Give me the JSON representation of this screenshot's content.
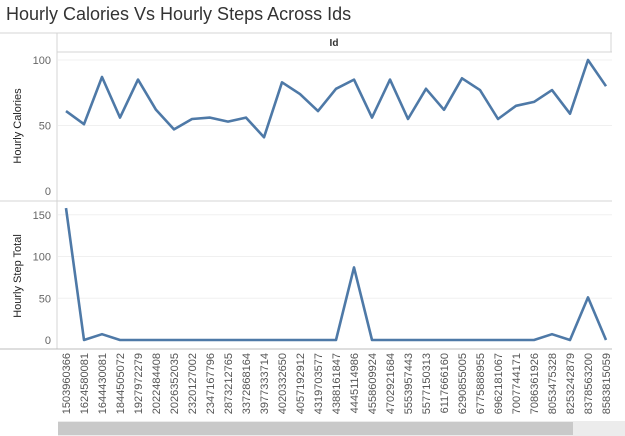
{
  "title": "Hourly Calories Vs Hourly Steps Across Ids",
  "chart_data": {
    "type": "line",
    "column_header": "Id",
    "categories": [
      "1503960366",
      "1624580081",
      "1644430081",
      "1844505072",
      "1927972279",
      "2022484408",
      "2026352035",
      "2320127002",
      "2347167796",
      "2873212765",
      "3372868164",
      "3977333714",
      "4020332650",
      "4057192912",
      "4319703577",
      "4388161847",
      "4445114986",
      "4558609924",
      "4702921684",
      "5553957443",
      "5577150313",
      "6117666160",
      "6290855005",
      "6775888955",
      "6962181067",
      "7007744171",
      "7086361926",
      "8053475328",
      "8253242879",
      "8378563200",
      "8583815059"
    ],
    "panels": [
      {
        "ylabel": "Hourly Calories",
        "ylim": [
          0,
          110
        ],
        "yticks": [
          0,
          50,
          100
        ],
        "values": [
          61,
          51,
          87,
          56,
          85,
          62,
          47,
          55,
          56,
          53,
          56,
          41,
          83,
          74,
          61,
          78,
          85,
          56,
          85,
          55,
          78,
          62,
          86,
          77,
          55,
          65,
          68,
          77,
          59,
          100,
          80
        ]
      },
      {
        "ylabel": "Hourly Step Total",
        "ylim": [
          0,
          160
        ],
        "yticks": [
          0,
          50,
          100,
          150
        ],
        "values": [
          158,
          0,
          7,
          0,
          0,
          0,
          0,
          0,
          0,
          0,
          0,
          0,
          0,
          0,
          0,
          0,
          87,
          0,
          0,
          0,
          0,
          0,
          0,
          0,
          0,
          0,
          0,
          7,
          0,
          51,
          0
        ]
      }
    ],
    "line_color": "#4e79a7",
    "grid": true
  }
}
